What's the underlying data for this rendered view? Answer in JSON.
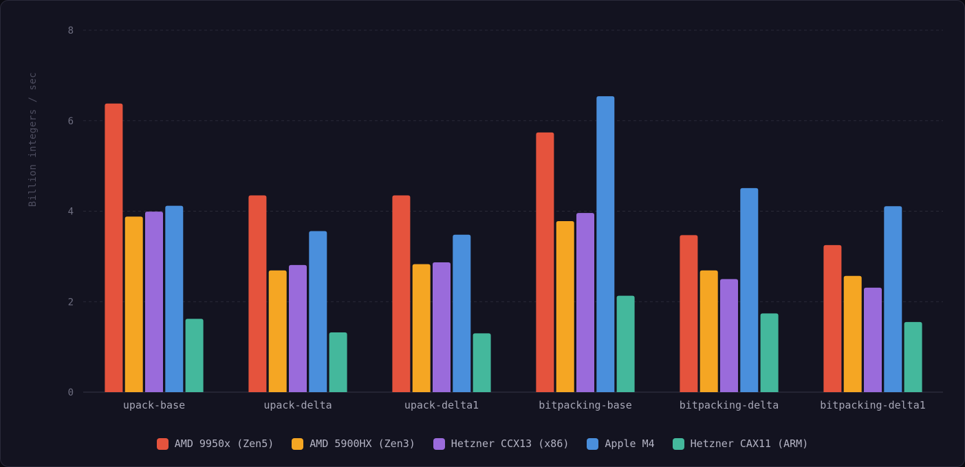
{
  "chart_data": {
    "type": "bar",
    "title": "",
    "xlabel": "",
    "ylabel": "Billion integers / sec",
    "ylim": [
      0,
      8
    ],
    "yticks": [
      0,
      2,
      4,
      6,
      8
    ],
    "grid": true,
    "legend_position": "bottom-center",
    "categories": [
      "upack-base",
      "upack-delta",
      "upack-delta1",
      "bitpacking-base",
      "bitpacking-delta",
      "bitpacking-delta1"
    ],
    "series": [
      {
        "name": "AMD 9950x (Zen5)",
        "color": "#e5533d",
        "values": [
          6.38,
          4.35,
          4.35,
          5.74,
          3.47,
          3.25
        ]
      },
      {
        "name": "AMD 5900HX (Zen3)",
        "color": "#f5a623",
        "values": [
          3.88,
          2.69,
          2.83,
          3.78,
          2.69,
          2.57
        ]
      },
      {
        "name": "Hetzner CCX13 (x86)",
        "color": "#9a6bdb",
        "values": [
          3.99,
          2.81,
          2.87,
          3.96,
          2.5,
          2.31
        ]
      },
      {
        "name": "Apple M4",
        "color": "#4a8fdc",
        "values": [
          4.12,
          3.56,
          3.48,
          6.54,
          4.51,
          4.11
        ]
      },
      {
        "name": "Hetzner CAX11 (ARM)",
        "color": "#44b89c",
        "values": [
          1.62,
          1.32,
          1.3,
          2.13,
          1.74,
          1.55
        ]
      }
    ]
  }
}
